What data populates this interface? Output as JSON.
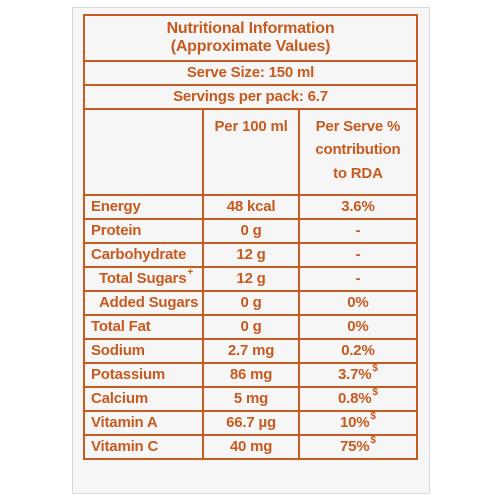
{
  "label": {
    "title_line1": "Nutritional Information",
    "title_line2": "(Approximate Values)",
    "serve_size": "Serve Size: 150 ml",
    "servings_per_pack": "Servings per pack: 6.7",
    "col_per100": "Per 100 ml",
    "col_perserve_line1": "Per Serve %",
    "col_perserve_line2": "contribution",
    "col_perserve_line3": "to RDA",
    "rows": [
      {
        "name": "Energy",
        "per100": "48 kcal",
        "rda": "3.6%",
        "name_mark": "",
        "rda_mark": ""
      },
      {
        "name": "Protein",
        "per100": "0 g",
        "rda": "-",
        "name_mark": "",
        "rda_mark": ""
      },
      {
        "name": "Carbohydrate",
        "per100": "12 g",
        "rda": "-",
        "name_mark": "",
        "rda_mark": ""
      },
      {
        "name": "Total Sugars",
        "per100": "12 g",
        "rda": "-",
        "name_mark": "+",
        "rda_mark": ""
      },
      {
        "name": "Added Sugars",
        "per100": "0 g",
        "rda": "0%",
        "name_mark": "",
        "rda_mark": ""
      },
      {
        "name": "Total Fat",
        "per100": "0 g",
        "rda": "0%",
        "name_mark": "",
        "rda_mark": ""
      },
      {
        "name": "Sodium",
        "per100": "2.7 mg",
        "rda": "0.2%",
        "name_mark": "",
        "rda_mark": ""
      },
      {
        "name": "Potassium",
        "per100": "86 mg",
        "rda": "3.7%",
        "name_mark": "",
        "rda_mark": "$"
      },
      {
        "name": "Calcium",
        "per100": "5 mg",
        "rda": "0.8%",
        "name_mark": "",
        "rda_mark": "$"
      },
      {
        "name": "Vitamin A",
        "per100": "66.7 µg",
        "rda": "10%",
        "name_mark": "",
        "rda_mark": "$"
      },
      {
        "name": "Vitamin C",
        "per100": "40 mg",
        "rda": "75%",
        "name_mark": "",
        "rda_mark": "$"
      }
    ]
  },
  "colors": {
    "ink": "#c75a1f",
    "panel": "#f6f6f6",
    "background": "#ffffff"
  }
}
